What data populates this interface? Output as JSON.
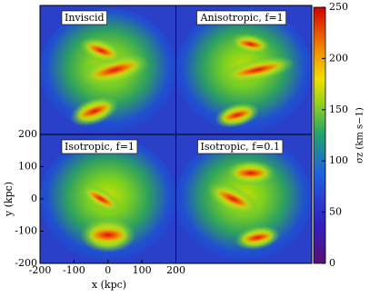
{
  "chart_data": {
    "type": "image-grid",
    "panels": [
      {
        "title": "Inviscid"
      },
      {
        "title": "Anisotropic, f=1"
      },
      {
        "title": "Isotropic, f=1"
      },
      {
        "title": "Isotropic, f=0.1"
      }
    ],
    "xlabel": "x (kpc)",
    "ylabel": "y (kpc)",
    "xlim": [
      -200,
      200
    ],
    "xticks": [
      -200,
      -100,
      0,
      100,
      200
    ],
    "ylim": [
      -200,
      200
    ],
    "yticks": [
      -200,
      -100,
      0,
      100,
      200
    ],
    "colorbar": {
      "label": "σz (km s−1)",
      "lim": [
        0,
        250
      ],
      "ticks": [
        0,
        50,
        100,
        150,
        200,
        250
      ]
    }
  }
}
